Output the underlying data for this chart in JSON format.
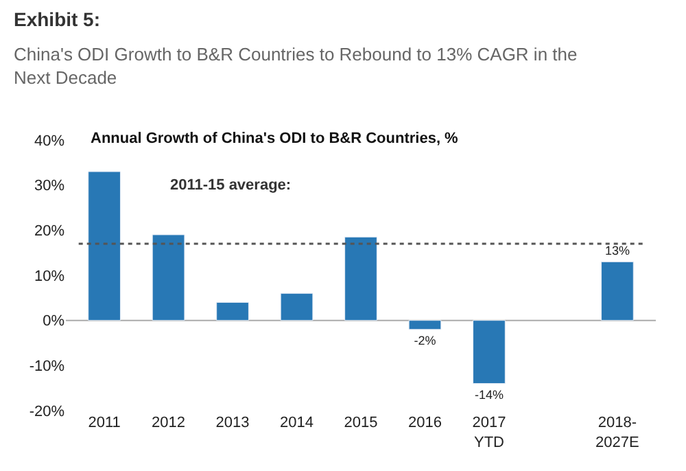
{
  "chart_data": {
    "type": "bar",
    "title": "Exhibit 5:",
    "subtitle": "China's ODI Growth to B&R Countries to Rebound to 13% CAGR in the Next Decade",
    "annotations": [
      "Annual Growth of China's ODI to B&R Countries, %"
    ],
    "categories": [
      "2011",
      "2012",
      "2013",
      "2014",
      "2015",
      "2016",
      "2017\nYTD",
      null,
      "2018-\n2027E"
    ],
    "values": [
      33,
      19,
      4,
      6,
      18.5,
      -2,
      -14,
      null,
      13
    ],
    "value_labels": [
      null,
      null,
      null,
      null,
      null,
      "-2%",
      "-14%",
      null,
      "13%"
    ],
    "color": "#2878b5",
    "ylim": [
      -20,
      40
    ],
    "yticks": [
      {
        "value": -20,
        "label": "-20%"
      },
      {
        "value": -10,
        "label": "-10%"
      },
      {
        "value": 0,
        "label": "0%"
      },
      {
        "value": 10,
        "label": "10%"
      },
      {
        "value": 20,
        "label": "20%"
      },
      {
        "value": 30,
        "label": "30%"
      },
      {
        "value": 40,
        "label": "40%"
      }
    ],
    "ref_lines": [
      {
        "axis": "y",
        "value": 17,
        "label": "2011-15 average:",
        "color": "#555555",
        "line_style": "dotted"
      }
    ],
    "legend": false
  }
}
